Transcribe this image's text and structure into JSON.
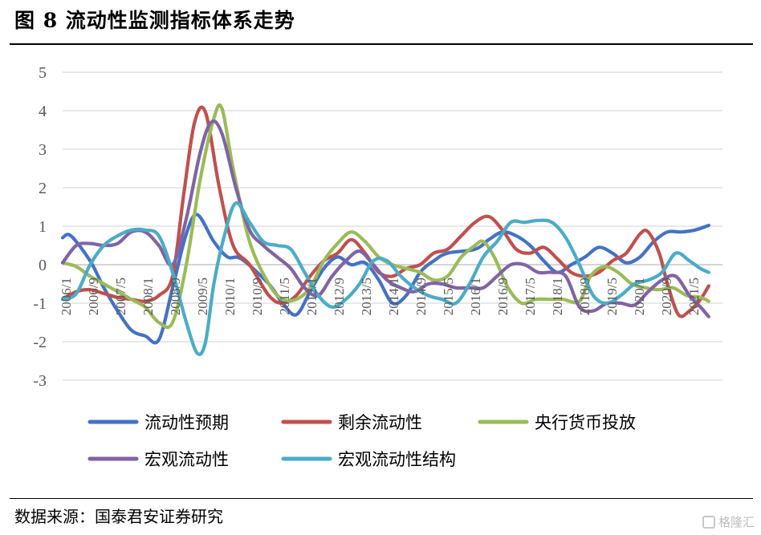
{
  "title": "图 8  流动性监测指标体系走势",
  "source": "数据来源：国泰君安证券研究",
  "watermark": "格隆汇",
  "chart_data": {
    "type": "line",
    "ylim": [
      -3,
      5
    ],
    "yticks": [
      "5",
      "4",
      "3",
      "2",
      "1",
      "0",
      "-1",
      "-2",
      "-3"
    ],
    "x_tick_labels": [
      "2006/1",
      "2006/9",
      "2007/5",
      "2008/1",
      "2008/9",
      "2009/5",
      "2010/1",
      "2010/9",
      "2011/5",
      "2012/1",
      "2012/9",
      "2013/5",
      "2014/1",
      "2014/9",
      "2015/5",
      "2016/1",
      "2016/9",
      "2017/5",
      "2018/1",
      "2018/9",
      "2019/5",
      "2020/1",
      "2020/9",
      "2021/5"
    ],
    "x_range": [
      0,
      24
    ],
    "series": [
      {
        "name": "流动性预期",
        "color": "#4472C4",
        "points": [
          [
            0,
            0.7
          ],
          [
            0.3,
            0.75
          ],
          [
            1.0,
            0.1
          ],
          [
            1.5,
            -0.6
          ],
          [
            2.0,
            -1.2
          ],
          [
            2.5,
            -1.7
          ],
          [
            3.0,
            -1.85
          ],
          [
            3.5,
            -1.95
          ],
          [
            4.0,
            -0.6
          ],
          [
            4.5,
            0.8
          ],
          [
            4.9,
            1.3
          ],
          [
            5.5,
            0.6
          ],
          [
            6.0,
            0.2
          ],
          [
            6.5,
            0.15
          ],
          [
            7.5,
            -0.5
          ],
          [
            8.0,
            -1.0
          ],
          [
            8.5,
            -1.3
          ],
          [
            9.0,
            -0.7
          ],
          [
            9.5,
            -0.1
          ],
          [
            10.0,
            0.2
          ],
          [
            10.5,
            0.0
          ],
          [
            11.0,
            0.05
          ],
          [
            11.5,
            -0.4
          ],
          [
            12.0,
            -1.0
          ],
          [
            12.5,
            -0.8
          ],
          [
            13.0,
            -0.2
          ],
          [
            13.5,
            0.1
          ],
          [
            14.0,
            0.3
          ],
          [
            15.0,
            0.4
          ],
          [
            15.5,
            0.65
          ],
          [
            16.0,
            0.85
          ],
          [
            16.5,
            0.75
          ],
          [
            17.0,
            0.5
          ],
          [
            17.5,
            0.1
          ],
          [
            18.0,
            -0.2
          ],
          [
            18.5,
            0.0
          ],
          [
            19.0,
            0.2
          ],
          [
            19.5,
            0.45
          ],
          [
            20.0,
            0.3
          ],
          [
            20.5,
            0.05
          ],
          [
            21.0,
            0.2
          ],
          [
            21.5,
            0.6
          ],
          [
            22.0,
            0.85
          ],
          [
            22.5,
            0.85
          ],
          [
            23.0,
            0.9
          ],
          [
            23.5,
            1.02
          ]
        ]
      },
      {
        "name": "剩余流动性",
        "color": "#C0504D",
        "points": [
          [
            0,
            -0.9
          ],
          [
            0.5,
            -0.7
          ],
          [
            1.0,
            -0.65
          ],
          [
            1.5,
            -0.75
          ],
          [
            2.0,
            -0.85
          ],
          [
            2.5,
            -0.9
          ],
          [
            3.0,
            -0.95
          ],
          [
            3.5,
            -0.8
          ],
          [
            4.0,
            -0.3
          ],
          [
            4.4,
            1.8
          ],
          [
            4.8,
            3.7
          ],
          [
            5.2,
            3.95
          ],
          [
            5.7,
            2.0
          ],
          [
            6.2,
            0.5
          ],
          [
            6.8,
            0.0
          ],
          [
            7.5,
            -0.8
          ],
          [
            8.0,
            -1.0
          ],
          [
            8.5,
            -0.8
          ],
          [
            9.0,
            -0.3
          ],
          [
            9.5,
            0.1
          ],
          [
            10.0,
            0.3
          ],
          [
            10.5,
            0.65
          ],
          [
            11.0,
            0.3
          ],
          [
            11.5,
            -0.2
          ],
          [
            12.0,
            -0.3
          ],
          [
            12.5,
            -0.1
          ],
          [
            13.0,
            0.0
          ],
          [
            13.5,
            0.3
          ],
          [
            14.0,
            0.4
          ],
          [
            14.5,
            0.75
          ],
          [
            15.0,
            1.1
          ],
          [
            15.5,
            1.25
          ],
          [
            16.0,
            0.9
          ],
          [
            16.5,
            0.4
          ],
          [
            17.0,
            0.3
          ],
          [
            17.5,
            0.45
          ],
          [
            18.0,
            0.15
          ],
          [
            18.5,
            -0.2
          ],
          [
            19.0,
            -0.3
          ],
          [
            19.5,
            -0.2
          ],
          [
            20.0,
            0.1
          ],
          [
            20.5,
            0.3
          ],
          [
            21.0,
            0.8
          ],
          [
            21.3,
            0.85
          ],
          [
            21.7,
            0.3
          ],
          [
            22.0,
            -0.5
          ],
          [
            22.4,
            -1.3
          ],
          [
            22.8,
            -1.2
          ],
          [
            23.2,
            -0.9
          ],
          [
            23.5,
            -0.55
          ]
        ]
      },
      {
        "name": "央行货币投放",
        "color": "#9BBB59",
        "points": [
          [
            0,
            0.05
          ],
          [
            0.5,
            -0.05
          ],
          [
            1.0,
            -0.3
          ],
          [
            1.5,
            -0.5
          ],
          [
            2.0,
            -0.7
          ],
          [
            2.5,
            -0.9
          ],
          [
            3.0,
            -1.1
          ],
          [
            3.5,
            -1.5
          ],
          [
            4.0,
            -1.5
          ],
          [
            4.5,
            0.0
          ],
          [
            5.0,
            2.2
          ],
          [
            5.5,
            3.8
          ],
          [
            5.8,
            4.05
          ],
          [
            6.2,
            2.5
          ],
          [
            6.8,
            0.6
          ],
          [
            7.5,
            -0.5
          ],
          [
            8.0,
            -0.9
          ],
          [
            8.5,
            -0.9
          ],
          [
            9.0,
            -0.6
          ],
          [
            9.5,
            0.1
          ],
          [
            10.0,
            0.55
          ],
          [
            10.5,
            0.85
          ],
          [
            11.0,
            0.6
          ],
          [
            11.5,
            0.2
          ],
          [
            12.0,
            0.0
          ],
          [
            12.5,
            -0.1
          ],
          [
            13.0,
            -0.2
          ],
          [
            13.5,
            -0.4
          ],
          [
            14.0,
            -0.3
          ],
          [
            14.5,
            0.2
          ],
          [
            15.0,
            0.5
          ],
          [
            15.3,
            0.6
          ],
          [
            15.7,
            0.2
          ],
          [
            16.2,
            -0.6
          ],
          [
            16.7,
            -1.0
          ],
          [
            17.2,
            -0.9
          ],
          [
            17.7,
            -0.9
          ],
          [
            18.2,
            -0.9
          ],
          [
            18.8,
            -0.95
          ],
          [
            19.2,
            -0.3
          ],
          [
            19.7,
            -0.05
          ],
          [
            20.2,
            -0.2
          ],
          [
            20.7,
            -0.5
          ],
          [
            21.2,
            -0.6
          ],
          [
            21.7,
            -0.65
          ],
          [
            22.2,
            -0.6
          ],
          [
            22.7,
            -0.8
          ],
          [
            23.2,
            -0.85
          ],
          [
            23.5,
            -0.95
          ]
        ]
      },
      {
        "name": "宏观流动性",
        "color": "#8064A2",
        "points": [
          [
            0,
            0.05
          ],
          [
            0.5,
            0.5
          ],
          [
            1.0,
            0.55
          ],
          [
            1.5,
            0.5
          ],
          [
            2.0,
            0.55
          ],
          [
            2.5,
            0.85
          ],
          [
            3.0,
            0.85
          ],
          [
            3.5,
            0.5
          ],
          [
            4.0,
            0.0
          ],
          [
            4.5,
            1.2
          ],
          [
            5.0,
            2.9
          ],
          [
            5.4,
            3.7
          ],
          [
            5.8,
            3.4
          ],
          [
            6.3,
            2.0
          ],
          [
            6.8,
            0.9
          ],
          [
            7.3,
            0.5
          ],
          [
            7.8,
            0.2
          ],
          [
            8.3,
            -0.1
          ],
          [
            8.8,
            -0.6
          ],
          [
            9.3,
            -0.8
          ],
          [
            9.8,
            -0.3
          ],
          [
            10.3,
            0.1
          ],
          [
            10.8,
            0.35
          ],
          [
            11.3,
            0.0
          ],
          [
            11.8,
            -0.4
          ],
          [
            12.3,
            -0.6
          ],
          [
            12.8,
            -0.7
          ],
          [
            13.3,
            -0.5
          ],
          [
            13.8,
            -0.5
          ],
          [
            14.3,
            -0.6
          ],
          [
            14.8,
            -0.6
          ],
          [
            15.3,
            -0.6
          ],
          [
            15.8,
            -0.3
          ],
          [
            16.3,
            0.0
          ],
          [
            16.8,
            0.0
          ],
          [
            17.3,
            -0.2
          ],
          [
            17.8,
            -0.2
          ],
          [
            18.3,
            -0.3
          ],
          [
            18.8,
            -1.1
          ],
          [
            19.3,
            -1.2
          ],
          [
            19.8,
            -1.0
          ],
          [
            20.3,
            -1.0
          ],
          [
            20.8,
            -1.05
          ],
          [
            21.3,
            -0.7
          ],
          [
            21.8,
            -0.4
          ],
          [
            22.3,
            -0.3
          ],
          [
            22.8,
            -0.8
          ],
          [
            23.2,
            -1.1
          ],
          [
            23.5,
            -1.35
          ]
        ]
      },
      {
        "name": "宏观流动性结构",
        "color": "#4BACC6",
        "points": [
          [
            0,
            -0.9
          ],
          [
            0.5,
            -0.75
          ],
          [
            1.0,
            0.0
          ],
          [
            1.5,
            0.5
          ],
          [
            2.0,
            0.75
          ],
          [
            2.5,
            0.9
          ],
          [
            3.0,
            0.9
          ],
          [
            3.5,
            0.75
          ],
          [
            4.0,
            -0.2
          ],
          [
            4.5,
            -1.5
          ],
          [
            4.9,
            -2.3
          ],
          [
            5.2,
            -2.0
          ],
          [
            5.5,
            -0.5
          ],
          [
            5.9,
            0.8
          ],
          [
            6.3,
            1.6
          ],
          [
            6.8,
            1.1
          ],
          [
            7.3,
            0.6
          ],
          [
            7.8,
            0.5
          ],
          [
            8.3,
            0.4
          ],
          [
            8.8,
            -0.2
          ],
          [
            9.3,
            -0.8
          ],
          [
            9.8,
            -1.1
          ],
          [
            10.3,
            -0.9
          ],
          [
            10.8,
            -0.5
          ],
          [
            11.3,
            0.1
          ],
          [
            11.8,
            0.1
          ],
          [
            12.3,
            -0.3
          ],
          [
            12.8,
            -0.6
          ],
          [
            13.3,
            -0.8
          ],
          [
            13.8,
            -0.9
          ],
          [
            14.3,
            -1.0
          ],
          [
            14.8,
            -0.5
          ],
          [
            15.3,
            0.2
          ],
          [
            15.8,
            0.6
          ],
          [
            16.3,
            1.1
          ],
          [
            16.8,
            1.1
          ],
          [
            17.3,
            1.15
          ],
          [
            17.8,
            1.1
          ],
          [
            18.3,
            0.7
          ],
          [
            18.8,
            0.0
          ],
          [
            19.3,
            -0.8
          ],
          [
            19.8,
            -1.0
          ],
          [
            20.3,
            -0.8
          ],
          [
            20.8,
            -0.5
          ],
          [
            21.3,
            -0.4
          ],
          [
            21.8,
            -0.2
          ],
          [
            22.3,
            0.3
          ],
          [
            22.8,
            0.1
          ],
          [
            23.2,
            -0.1
          ],
          [
            23.5,
            -0.2
          ]
        ]
      }
    ],
    "legend": [
      {
        "name": "流动性预期",
        "color": "#4472C4"
      },
      {
        "name": "剩余流动性",
        "color": "#C0504D"
      },
      {
        "name": "央行货币投放",
        "color": "#9BBB59"
      },
      {
        "name": "宏观流动性",
        "color": "#8064A2"
      },
      {
        "name": "宏观流动性结构",
        "color": "#4BACC6"
      }
    ]
  }
}
